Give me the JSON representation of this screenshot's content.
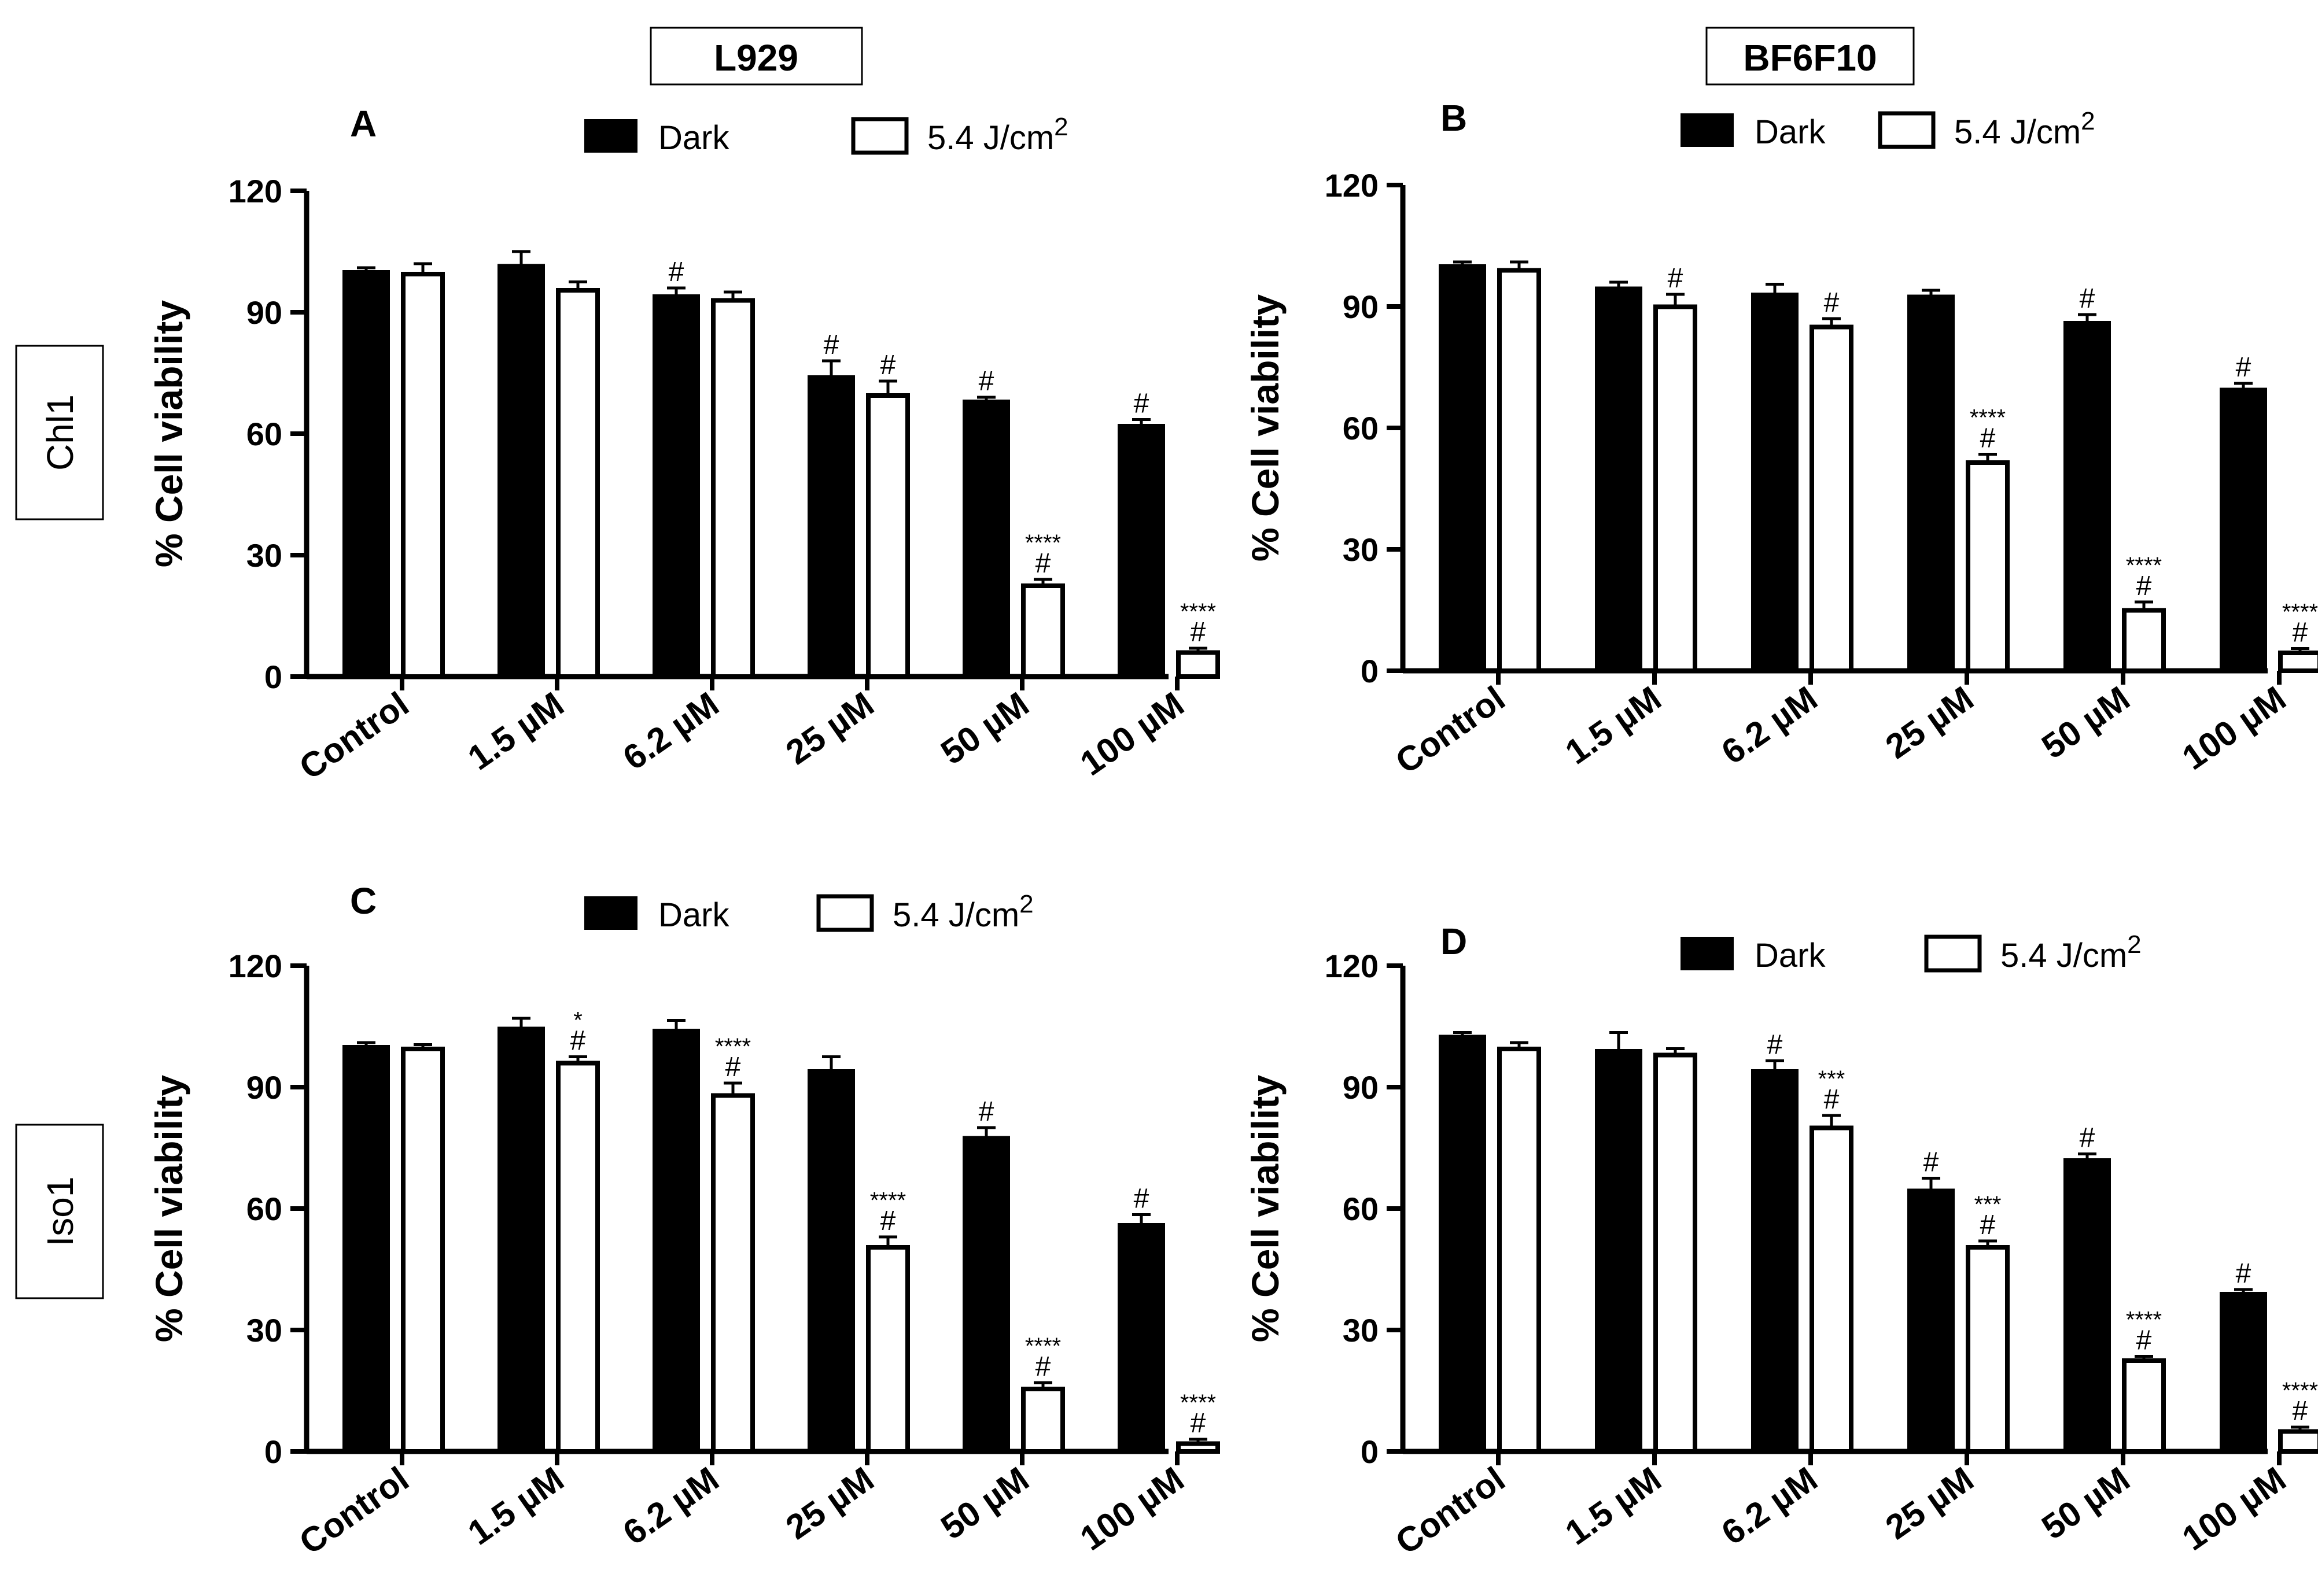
{
  "columns": [
    "L929",
    "BF6F10"
  ],
  "rows": [
    "Chl1",
    "Iso1"
  ],
  "chart_data": [
    {
      "type": "bar",
      "panel": "A",
      "column": "L929",
      "row": "Chl1",
      "legend": [
        "Dark",
        "5.4 J/cm",
        "2"
      ],
      "legend_position": "top",
      "ylabel": "% Cell viability",
      "xlabel": "",
      "ylim": [
        0,
        120
      ],
      "yticks": [
        "0",
        "30",
        "60",
        "90",
        "120"
      ],
      "categories": [
        "Control",
        "1.5 µM",
        "6.2 µM",
        "25 µM",
        "50 µM",
        "100 µM"
      ],
      "series": [
        {
          "name": "Dark",
          "values": [
            100,
            101.5,
            94,
            74,
            68,
            62
          ],
          "errors": [
            1,
            3.5,
            2,
            4,
            1,
            1.5
          ],
          "annotations": [
            [],
            [],
            [
              "#"
            ],
            [
              "#"
            ],
            [
              "#"
            ],
            [
              "#"
            ]
          ]
        },
        {
          "name": "5.4 J/cm2",
          "values": [
            100,
            96,
            93.5,
            70,
            23,
            6.5
          ],
          "errors": [
            2,
            1.5,
            1.5,
            3,
            1,
            0.5
          ],
          "annotations": [
            [],
            [],
            [],
            [
              "#"
            ],
            [
              "****",
              "#"
            ],
            [
              "****",
              "#"
            ]
          ]
        }
      ]
    },
    {
      "type": "bar",
      "panel": "B",
      "column": "BF6F10",
      "row": "Chl1",
      "legend": [
        "Dark",
        "5.4 J/cm",
        "2"
      ],
      "legend_position": "top",
      "ylabel": "% Cell viability",
      "xlabel": "",
      "ylim": [
        0,
        120
      ],
      "yticks": [
        "0",
        "30",
        "60",
        "90",
        "120"
      ],
      "categories": [
        "Control",
        "1.5 µM",
        "6.2 µM",
        "25 µM",
        "50 µM",
        "100 µM"
      ],
      "series": [
        {
          "name": "Dark",
          "values": [
            100,
            94.5,
            93,
            92.5,
            86,
            69.5
          ],
          "errors": [
            1,
            1.5,
            2.5,
            1.5,
            2,
            1.5
          ],
          "annotations": [
            [],
            [],
            [],
            [],
            [
              "#"
            ],
            [
              "#"
            ]
          ]
        },
        {
          "name": "5.4 J/cm2",
          "values": [
            99.5,
            90.5,
            85.5,
            52,
            15.5,
            5
          ],
          "errors": [
            1.5,
            2.5,
            1.5,
            1.5,
            1.5,
            0.5
          ],
          "annotations": [
            [],
            [
              "#"
            ],
            [
              "#"
            ],
            [
              "****",
              "#"
            ],
            [
              "****",
              "#"
            ],
            [
              "****",
              "#"
            ]
          ]
        }
      ]
    },
    {
      "type": "bar",
      "panel": "C",
      "column": "L929",
      "row": "Iso1",
      "legend": [
        "Dark",
        "5.4 J/cm",
        "2"
      ],
      "legend_position": "top",
      "ylabel": "% Cell viability",
      "xlabel": "",
      "ylim": [
        0,
        120
      ],
      "yticks": [
        "0",
        "30",
        "60",
        "90",
        "120"
      ],
      "categories": [
        "Control",
        "1.5 µM",
        "6.2 µM",
        "25 µM",
        "50 µM",
        "100 µM"
      ],
      "series": [
        {
          "name": "Dark",
          "values": [
            100,
            104.5,
            104,
            94,
            77.5,
            56
          ],
          "errors": [
            1,
            2.5,
            2.5,
            3.5,
            2.5,
            2.5
          ],
          "annotations": [
            [],
            [],
            [],
            [],
            [
              "#"
            ],
            [
              "#"
            ]
          ]
        },
        {
          "name": "5.4 J/cm2",
          "values": [
            100,
            96.5,
            88.5,
            51,
            16,
            2.5
          ],
          "errors": [
            0.5,
            1,
            2.5,
            2,
            1,
            0.5
          ],
          "annotations": [
            [],
            [
              "*",
              "#"
            ],
            [
              "****",
              "#"
            ],
            [
              "****",
              "#"
            ],
            [
              "****",
              "#"
            ],
            [
              "****",
              "#"
            ]
          ]
        }
      ]
    },
    {
      "type": "bar",
      "panel": "D",
      "column": "BF6F10",
      "row": "Iso1",
      "legend": [
        "Dark",
        "5.4 J/cm",
        "2"
      ],
      "legend_position": "top",
      "ylabel": "% Cell viability",
      "xlabel": "",
      "ylim": [
        0,
        120
      ],
      "yticks": [
        "0",
        "30",
        "60",
        "90",
        "120"
      ],
      "categories": [
        "Control",
        "1.5 µM",
        "6.2 µM",
        "25 µM",
        "50 µM",
        "100 µM"
      ],
      "series": [
        {
          "name": "Dark",
          "values": [
            102.5,
            99,
            94,
            64.5,
            72,
            39
          ],
          "errors": [
            1,
            4.5,
            2.5,
            3,
            1.5,
            1
          ],
          "annotations": [
            [],
            [],
            [
              "#"
            ],
            [
              "#"
            ],
            [
              "#"
            ],
            [
              "#"
            ]
          ]
        },
        {
          "name": "5.4 J/cm2",
          "values": [
            100,
            98.5,
            80.5,
            51,
            23,
            5.5
          ],
          "errors": [
            1,
            1,
            2.5,
            1,
            0.5,
            0.5
          ],
          "annotations": [
            [],
            [],
            [
              "***",
              "#"
            ],
            [
              "***",
              "#"
            ],
            [
              "****",
              "#"
            ],
            [
              "****",
              "#"
            ]
          ]
        }
      ]
    }
  ]
}
